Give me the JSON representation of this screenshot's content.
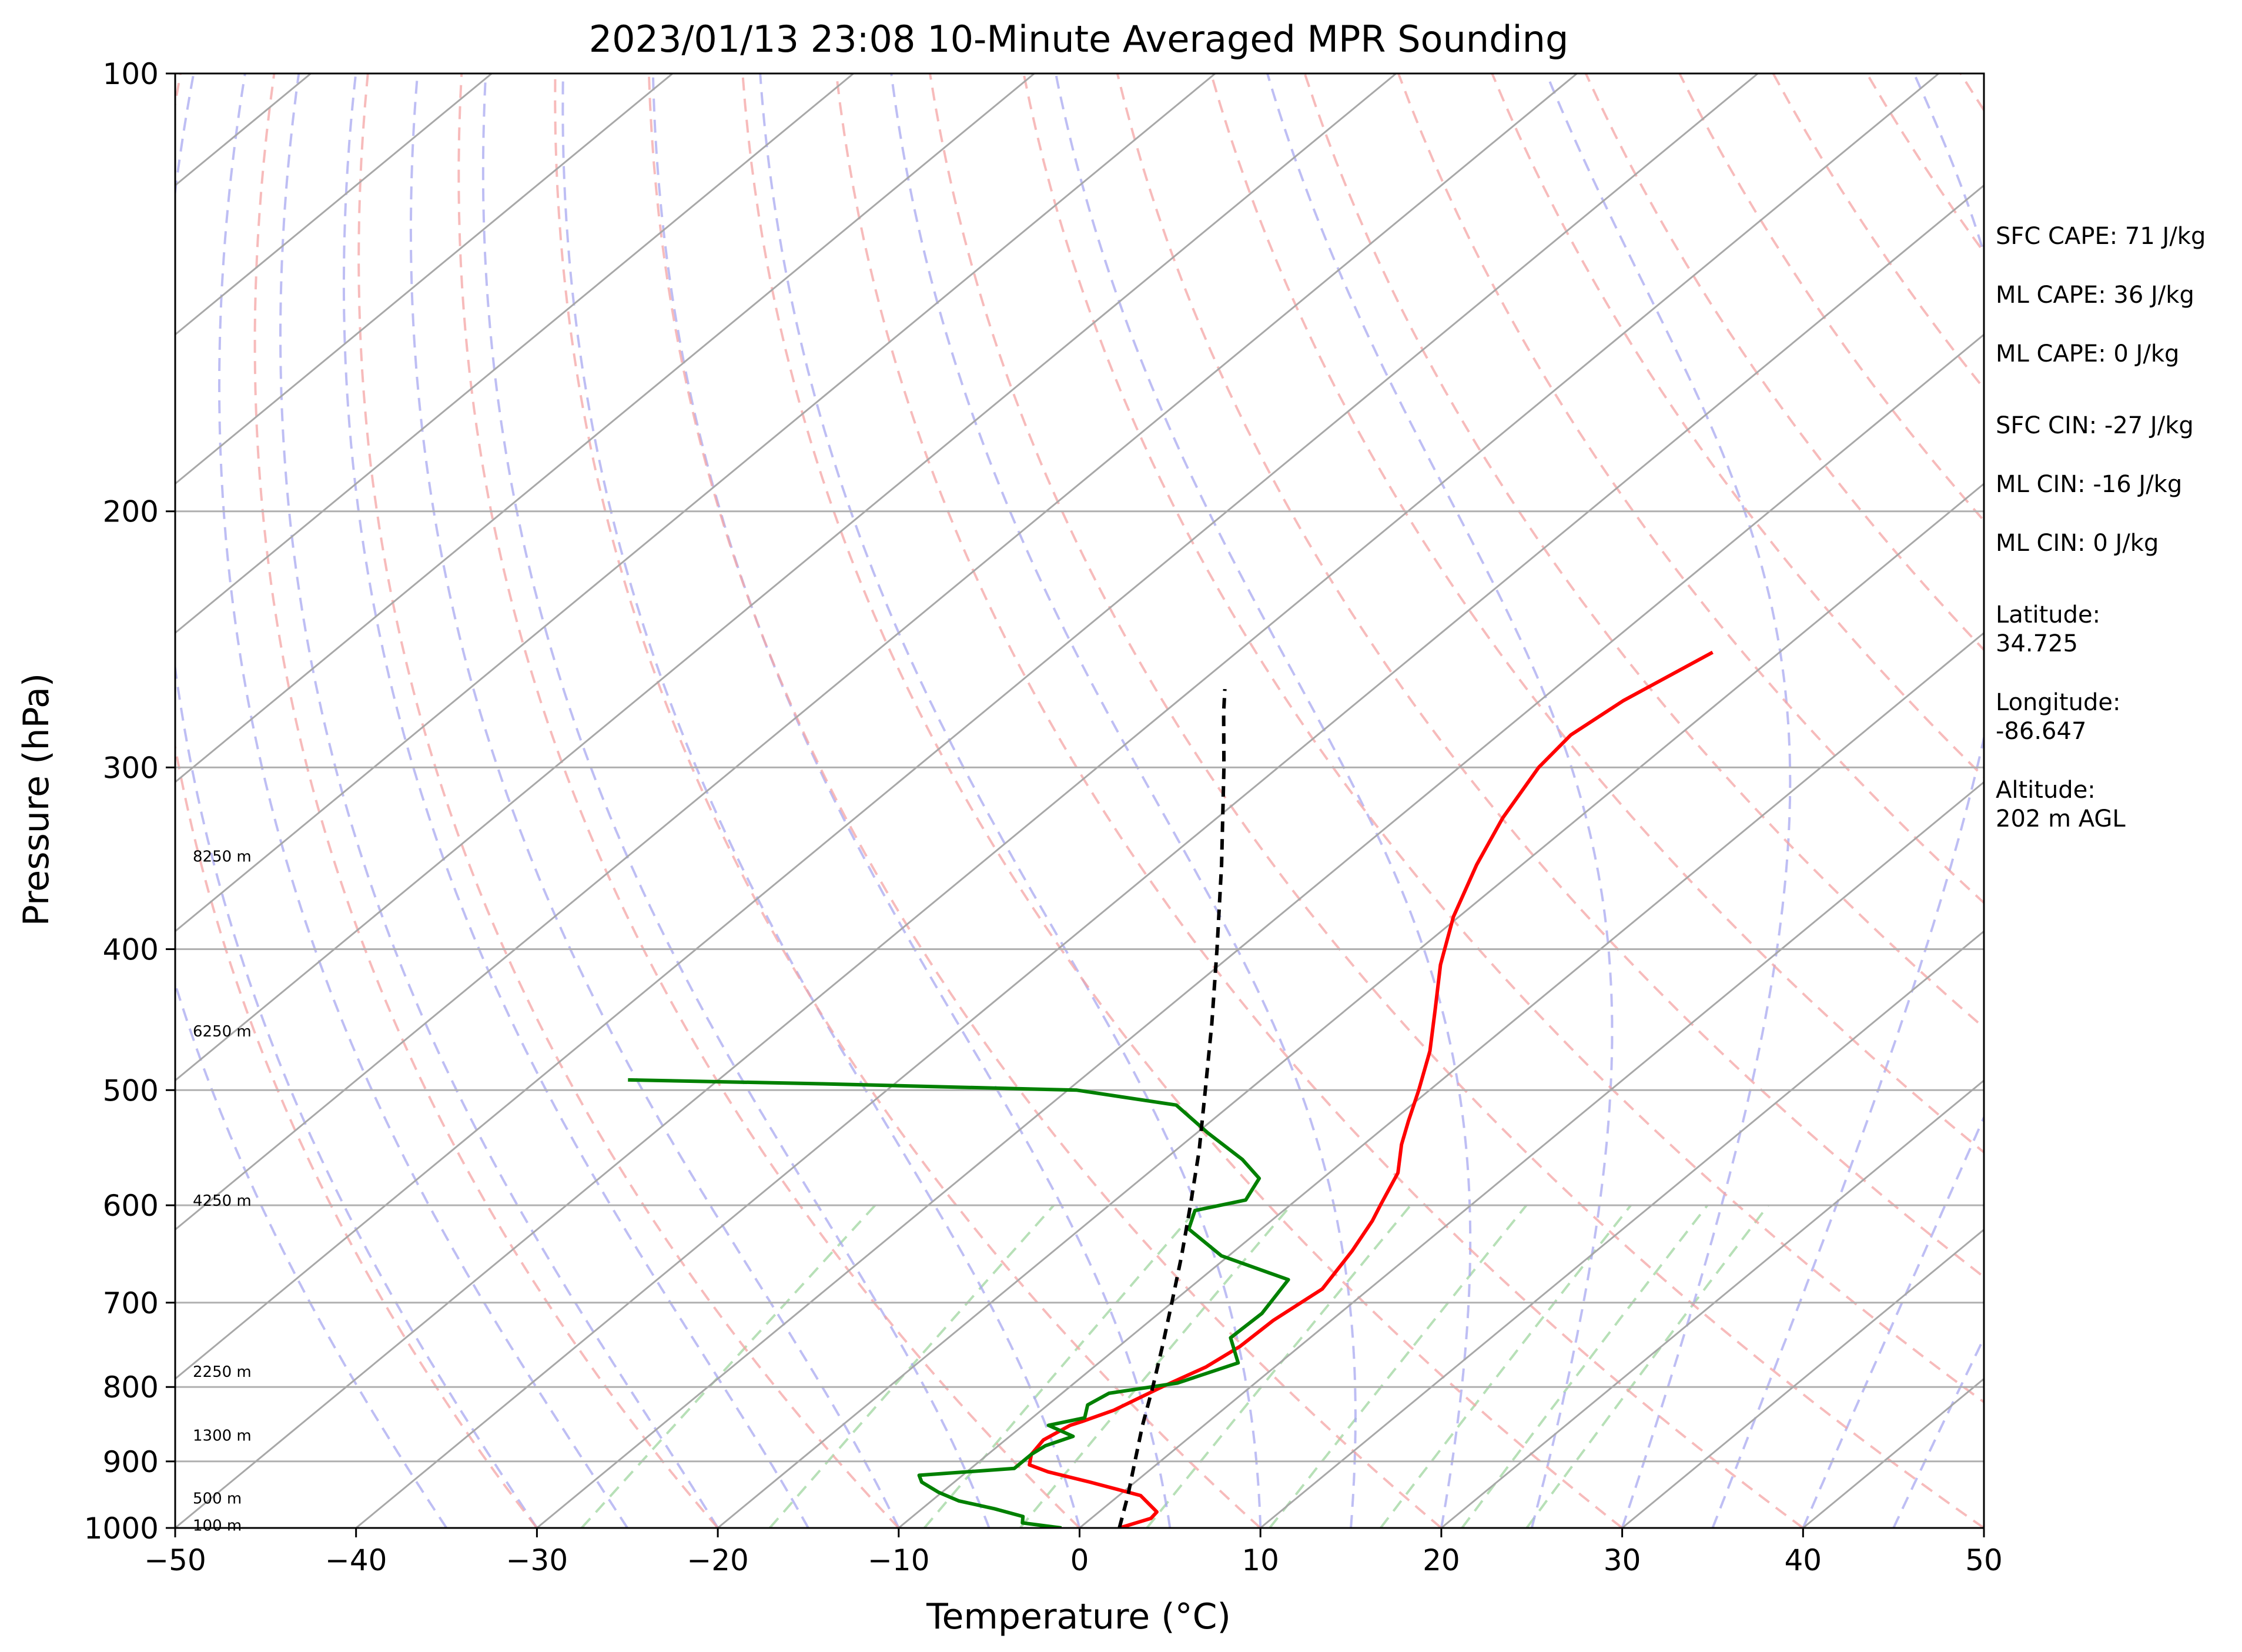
{
  "chart_data": {
    "type": "line",
    "subtype": "skew-T log-p sounding",
    "title": "2023/01/13 23:08 10-Minute Averaged MPR Sounding",
    "xlabel": "Temperature (°C)",
    "ylabel": "Pressure (hPa)",
    "xlim": [
      -50,
      50
    ],
    "ylim": [
      1000,
      100
    ],
    "y_scale": "log",
    "grid": true,
    "x_ticks": [
      -50,
      -40,
      -30,
      -20,
      -10,
      0,
      10,
      20,
      30,
      40,
      50
    ],
    "x_tick_labels": [
      "−50",
      "−40",
      "−30",
      "−20",
      "−10",
      "0",
      "10",
      "20",
      "30",
      "40",
      "50"
    ],
    "y_ticks": [
      1000,
      900,
      800,
      700,
      600,
      500,
      400,
      300,
      200,
      100
    ],
    "y_tick_labels": [
      "1000",
      "900",
      "800",
      "700",
      "600",
      "500",
      "400",
      "300",
      "200",
      "100"
    ],
    "height_labels": [
      {
        "p": 995,
        "text": "100 m"
      },
      {
        "p": 953,
        "text": "500 m"
      },
      {
        "p": 863,
        "text": "1300 m"
      },
      {
        "p": 780,
        "text": "2250 m"
      },
      {
        "p": 595,
        "text": "4250 m"
      },
      {
        "p": 455,
        "text": "6250 m"
      },
      {
        "p": 345,
        "text": "8250 m"
      }
    ],
    "series": [
      {
        "color": "#ff0000",
        "points": [
          [
            1000,
            2.2
          ],
          [
            985,
            3.3
          ],
          [
            975,
            3.2
          ],
          [
            950,
            1.2
          ],
          [
            930,
            -2.5
          ],
          [
            915,
            -5.5
          ],
          [
            905,
            -7.0
          ],
          [
            890,
            -7.6
          ],
          [
            870,
            -7.9
          ],
          [
            850,
            -7.4
          ],
          [
            845,
            -7.0
          ],
          [
            830,
            -6.0
          ],
          [
            800,
            -4.9
          ],
          [
            775,
            -3.8
          ],
          [
            750,
            -3.3
          ],
          [
            720,
            -3.2
          ],
          [
            685,
            -2.6
          ],
          [
            645,
            -3.5
          ],
          [
            615,
            -4.4
          ],
          [
            600,
            -5.0
          ],
          [
            570,
            -6.2
          ],
          [
            545,
            -7.9
          ],
          [
            525,
            -9.1
          ],
          [
            500,
            -10.6
          ],
          [
            470,
            -12.6
          ],
          [
            440,
            -15.1
          ],
          [
            410,
            -17.8
          ],
          [
            380,
            -20.3
          ],
          [
            350,
            -22.5
          ],
          [
            325,
            -24.2
          ],
          [
            300,
            -25.6
          ],
          [
            285,
            -26.0
          ],
          [
            270,
            -25.4
          ],
          [
            250,
            -23.7
          ]
        ]
      },
      {
        "color": "#008000",
        "points": [
          [
            1000,
            -1.0
          ],
          [
            992,
            -3.5
          ],
          [
            982,
            -3.9
          ],
          [
            970,
            -6.0
          ],
          [
            958,
            -8.5
          ],
          [
            945,
            -10.2
          ],
          [
            930,
            -11.8
          ],
          [
            920,
            -12.4
          ],
          [
            910,
            -7.6
          ],
          [
            890,
            -7.6
          ],
          [
            878,
            -7.4
          ],
          [
            865,
            -6.5
          ],
          [
            850,
            -8.6
          ],
          [
            840,
            -7.1
          ],
          [
            823,
            -7.8
          ],
          [
            808,
            -7.4
          ],
          [
            795,
            -4.3
          ],
          [
            770,
            -2.3
          ],
          [
            740,
            -4.4
          ],
          [
            712,
            -4.3
          ],
          [
            675,
            -5.1
          ],
          [
            650,
            -10.4
          ],
          [
            623,
            -14.0
          ],
          [
            605,
            -14.9
          ],
          [
            595,
            -12.8
          ],
          [
            575,
            -13.5
          ],
          [
            558,
            -15.7
          ],
          [
            535,
            -19.4
          ],
          [
            512,
            -23.0
          ],
          [
            500,
            -29.5
          ],
          [
            495,
            -44.0
          ],
          [
            492,
            -55.0
          ]
        ]
      },
      {
        "color": "#000000",
        "dashed": true,
        "points": [
          [
            1000,
            2.2
          ],
          [
            950,
            0.5
          ],
          [
            900,
            -1.4
          ],
          [
            850,
            -3.4
          ],
          [
            800,
            -5.4
          ],
          [
            750,
            -7.6
          ],
          [
            700,
            -10.0
          ],
          [
            650,
            -12.6
          ],
          [
            600,
            -15.5
          ],
          [
            550,
            -18.7
          ],
          [
            500,
            -22.4
          ],
          [
            450,
            -26.5
          ],
          [
            400,
            -31.2
          ],
          [
            350,
            -36.6
          ],
          [
            300,
            -43.0
          ],
          [
            275,
            -46.7
          ],
          [
            265,
            -48.2
          ]
        ]
      }
    ]
  },
  "side_info": [
    {
      "text": "SFC CAPE: 71 J/kg"
    },
    {
      "text": "ML CAPE: 36 J/kg"
    },
    {
      "text": "ML CAPE: 0 J/kg"
    },
    {
      "text": "SFC CIN: -27 J/kg"
    },
    {
      "text": "ML CIN: -16 J/kg"
    },
    {
      "text": "ML CIN: 0 J/kg"
    },
    {
      "text": "Latitude:"
    },
    {
      "text": "34.725"
    },
    {
      "text": "Longitude:"
    },
    {
      "text": "-86.647"
    },
    {
      "text": "Altitude:"
    },
    {
      "text": "202 m AGL"
    }
  ]
}
